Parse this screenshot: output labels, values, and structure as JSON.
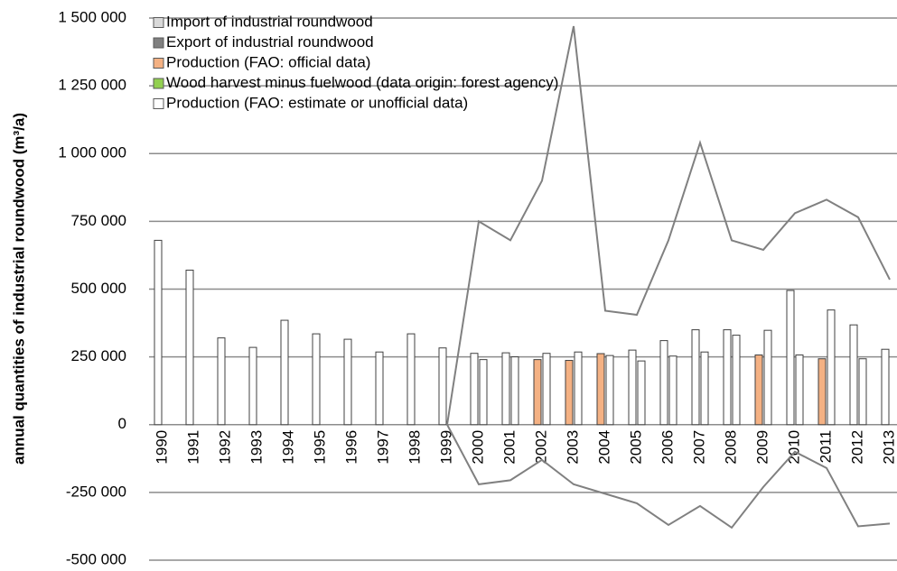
{
  "chart_data": {
    "type": "bar",
    "y_label": "annual quantities of industrial roundwood (m³/a)",
    "categories": [
      "1990",
      "1991",
      "1992",
      "1993",
      "1994",
      "1995",
      "1996",
      "1997",
      "1998",
      "1999",
      "2000",
      "2001",
      "2002",
      "2003",
      "2004",
      "2005",
      "2006",
      "2007",
      "2008",
      "2009",
      "2010",
      "2011",
      "2012",
      "2013"
    ],
    "series": [
      {
        "name": "Import of industrial roundwood",
        "type": "line",
        "color": "#808080",
        "values": [
          null,
          null,
          null,
          null,
          null,
          null,
          null,
          null,
          null,
          0,
          750000,
          680000,
          900000,
          1470000,
          420000,
          405000,
          680000,
          1040000,
          680000,
          645000,
          780000,
          830000,
          765000,
          535000
        ]
      },
      {
        "name": "Export of industrial roundwood",
        "type": "line",
        "color": "#808080",
        "values": [
          null,
          null,
          null,
          null,
          null,
          null,
          null,
          null,
          null,
          0,
          -220000,
          -205000,
          -130000,
          -220000,
          -255000,
          -290000,
          -370000,
          -300000,
          -380000,
          -230000,
          -100000,
          -160000,
          -375000,
          -365000
        ]
      },
      {
        "name": "Production (FAO: official data)",
        "type": "bar",
        "color": "#f4b183",
        "values": [
          null,
          null,
          null,
          null,
          null,
          null,
          null,
          null,
          null,
          null,
          null,
          null,
          240000,
          237000,
          262000,
          null,
          null,
          null,
          null,
          257000,
          null,
          243000,
          null,
          null
        ]
      },
      {
        "name": "Wood harvest minus fuelwood (data origin: forest agency)",
        "type": "bar",
        "color": "#ffffff",
        "values": [
          null,
          null,
          null,
          null,
          null,
          null,
          null,
          null,
          null,
          null,
          240000,
          250000,
          263000,
          268000,
          255000,
          235000,
          253000,
          268000,
          330000,
          348000,
          257000,
          423000,
          243000,
          null
        ]
      },
      {
        "name": "Production (FAO: estimate or unofficial data)",
        "type": "bar",
        "color": "#ffffff",
        "values": [
          680000,
          570000,
          320000,
          285000,
          385000,
          335000,
          315000,
          268000,
          335000,
          283000,
          263000,
          265000,
          null,
          null,
          null,
          275000,
          310000,
          350000,
          350000,
          null,
          495000,
          null,
          368000,
          278000
        ]
      }
    ],
    "ylim": [
      -500000,
      1500000
    ],
    "yticks": [
      {
        "value": -500000,
        "label": "-500 000"
      },
      {
        "value": -250000,
        "label": "-250 000"
      },
      0,
      {
        "value": 250000,
        "label": "250 000"
      },
      {
        "value": 500000,
        "label": "500 000"
      },
      {
        "value": 750000,
        "label": "750 000"
      },
      {
        "value": 1000000,
        "label": "1 000 000"
      },
      {
        "value": 1250000,
        "label": "1 250 000"
      },
      {
        "value": 1500000,
        "label": "1 500 000"
      }
    ],
    "grid": true
  }
}
